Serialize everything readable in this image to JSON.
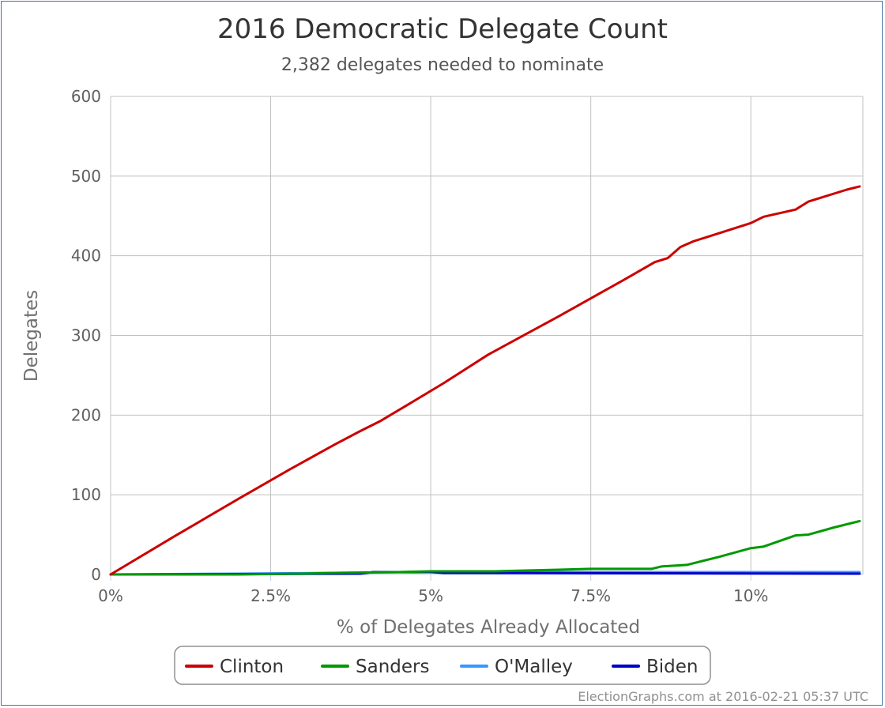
{
  "chart_data": {
    "type": "line",
    "title": "2016 Democratic Delegate Count",
    "subtitle": "2,382 delegates needed to nominate",
    "xlabel": "% of Delegates Already Allocated",
    "ylabel": "Delegates",
    "xlim": [
      0,
      11.75
    ],
    "ylim": [
      0,
      600
    ],
    "x_ticks": [
      0,
      2.5,
      5,
      7.5,
      10
    ],
    "x_tick_labels": [
      "0%",
      "2.5%",
      "5%",
      "7.5%",
      "10%"
    ],
    "y_ticks": [
      0,
      100,
      200,
      300,
      400,
      500,
      600
    ],
    "y_tick_labels": [
      "0",
      "100",
      "200",
      "300",
      "400",
      "500",
      "600"
    ],
    "grid": true,
    "legend_position": "bottom",
    "series": [
      {
        "name": "Clinton",
        "color": "#CC0000",
        "points": [
          [
            0,
            0
          ],
          [
            1.0,
            48
          ],
          [
            2.0,
            95
          ],
          [
            2.8,
            132
          ],
          [
            3.5,
            163
          ],
          [
            3.9,
            180
          ],
          [
            4.2,
            192
          ],
          [
            4.6,
            211
          ],
          [
            5.2,
            240
          ],
          [
            5.9,
            276
          ],
          [
            7.0,
            324
          ],
          [
            8.0,
            369
          ],
          [
            8.5,
            392
          ],
          [
            8.7,
            397
          ],
          [
            8.9,
            411
          ],
          [
            9.1,
            418
          ],
          [
            10.0,
            441
          ],
          [
            10.2,
            449
          ],
          [
            10.7,
            458
          ],
          [
            10.9,
            468
          ],
          [
            11.5,
            483
          ],
          [
            11.7,
            487
          ]
        ]
      },
      {
        "name": "Sanders",
        "color": "#009900",
        "points": [
          [
            0,
            0
          ],
          [
            2.0,
            0
          ],
          [
            3.0,
            1
          ],
          [
            3.5,
            2
          ],
          [
            4.5,
            3
          ],
          [
            5.0,
            4
          ],
          [
            6.0,
            4
          ],
          [
            7.0,
            6
          ],
          [
            7.5,
            7
          ],
          [
            8.45,
            7
          ],
          [
            8.6,
            10
          ],
          [
            9.0,
            12
          ],
          [
            9.5,
            22
          ],
          [
            10.0,
            33
          ],
          [
            10.2,
            35
          ],
          [
            10.7,
            49
          ],
          [
            10.9,
            50
          ],
          [
            11.3,
            59
          ],
          [
            11.7,
            67
          ]
        ]
      },
      {
        "name": "O'Malley",
        "color": "#3399FF",
        "points": [
          [
            0,
            0
          ],
          [
            2.0,
            1
          ],
          [
            3.5,
            2
          ],
          [
            5.0,
            3
          ],
          [
            7.5,
            3
          ],
          [
            10.0,
            3
          ],
          [
            11.7,
            3
          ]
        ]
      },
      {
        "name": "Biden",
        "color": "#0000CC",
        "points": [
          [
            0,
            0
          ],
          [
            3.9,
            1
          ],
          [
            4.1,
            3
          ],
          [
            5.0,
            3
          ],
          [
            5.2,
            2
          ],
          [
            11.7,
            1
          ]
        ]
      }
    ],
    "credit": "ElectionGraphs.com at 2016-02-21 05:37 UTC"
  }
}
